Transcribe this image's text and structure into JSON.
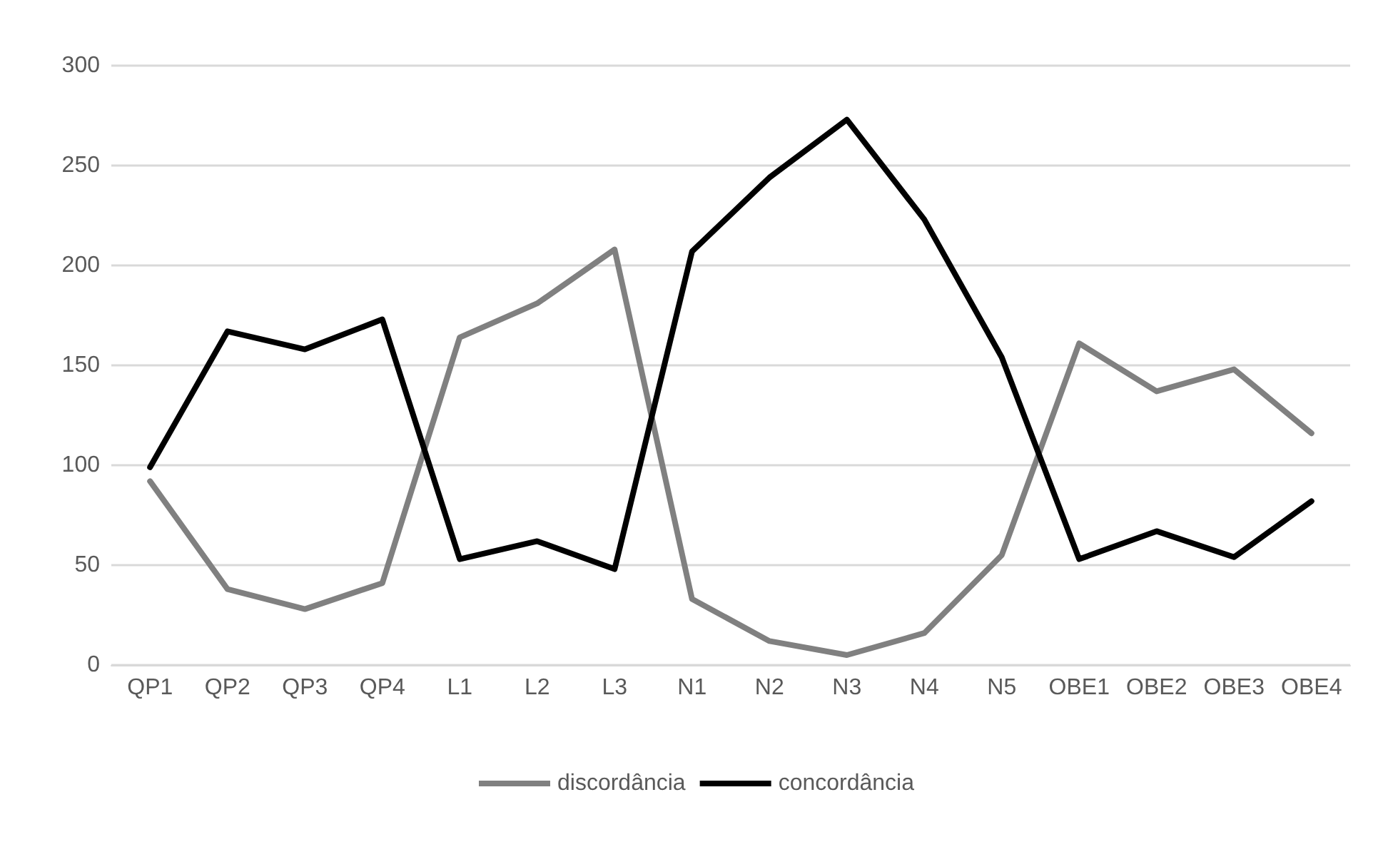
{
  "chart_data": {
    "type": "line",
    "categories": [
      "QP1",
      "QP2",
      "QP3",
      "QP4",
      "L1",
      "L2",
      "L3",
      "N1",
      "N2",
      "N3",
      "N4",
      "N5",
      "OBE1",
      "OBE2",
      "OBE3",
      "OBE4"
    ],
    "series": [
      {
        "name": "discordância",
        "color": "#808080",
        "values": [
          92,
          38,
          28,
          41,
          164,
          181,
          208,
          33,
          12,
          5,
          16,
          55,
          161,
          137,
          148,
          116
        ]
      },
      {
        "name": "concordância",
        "color": "#000000",
        "values": [
          99,
          167,
          158,
          173,
          53,
          62,
          48,
          207,
          244,
          273,
          223,
          154,
          53,
          67,
          54,
          82
        ]
      }
    ],
    "ylim": [
      0,
      300
    ],
    "yticks": [
      0,
      50,
      100,
      150,
      200,
      250,
      300
    ],
    "grid": "y",
    "legend": "bottom",
    "marker": "none",
    "line_style": "solid"
  }
}
